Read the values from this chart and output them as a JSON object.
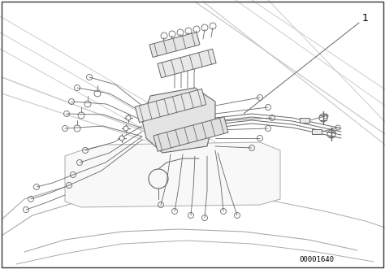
{
  "background_color": "#ffffff",
  "line_color": "#666666",
  "light_line_color": "#aaaaaa",
  "very_light_color": "#cccccc",
  "fill_light": "#efefef",
  "fill_mid": "#e0e0e0",
  "fill_dark": "#d0d0d0",
  "figure_width": 4.74,
  "figure_height": 3.31,
  "dpi": 100,
  "label_1": "1",
  "part_number": "00001640",
  "border_color": "#444444"
}
